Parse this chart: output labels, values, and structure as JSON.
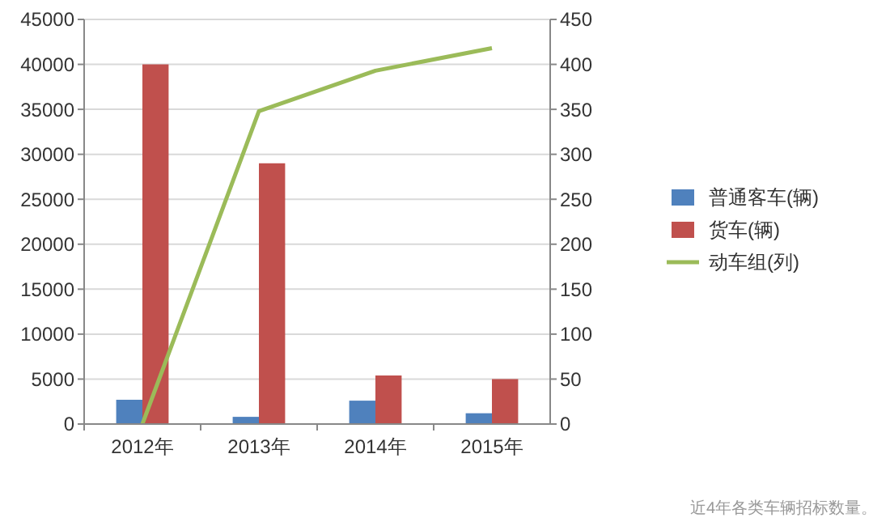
{
  "chart_data": {
    "type": "bar",
    "categories": [
      "2012年",
      "2013年",
      "2014年",
      "2015年"
    ],
    "series": [
      {
        "name": "普通客车(辆)",
        "color": "#4f81bd",
        "values": [
          2700,
          800,
          2600,
          1200
        ]
      },
      {
        "name": "货车(辆)",
        "color": "#c0504d",
        "values": [
          40000,
          29000,
          5400,
          5000
        ]
      },
      {
        "name": "动车组(列)",
        "type": "line",
        "axis": "y2",
        "color": "#9bbb59",
        "values": [
          0,
          348,
          393,
          418
        ]
      }
    ],
    "ylim": [
      0,
      45000
    ],
    "yticks": [
      0,
      5000,
      10000,
      15000,
      20000,
      25000,
      30000,
      35000,
      40000,
      45000
    ],
    "y2lim": [
      0,
      450
    ],
    "y2ticks": [
      0,
      50,
      100,
      150,
      200,
      250,
      300,
      350,
      400,
      450
    ],
    "grid": "y",
    "legend": "right",
    "marker": "none",
    "annotations": [
      "近4年各类车辆招标数量。"
    ]
  }
}
